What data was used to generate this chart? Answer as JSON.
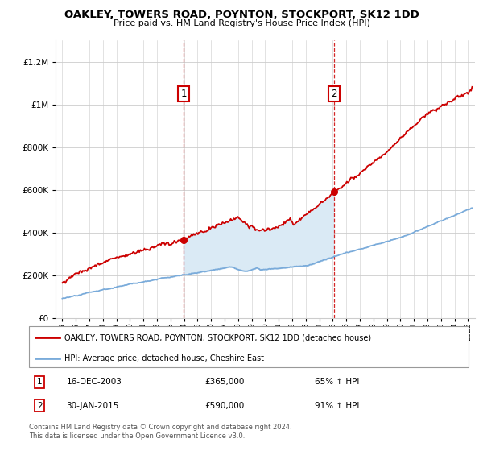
{
  "title": "OAKLEY, TOWERS ROAD, POYNTON, STOCKPORT, SK12 1DD",
  "subtitle": "Price paid vs. HM Land Registry's House Price Index (HPI)",
  "legend_label_red": "OAKLEY, TOWERS ROAD, POYNTON, STOCKPORT, SK12 1DD (detached house)",
  "legend_label_blue": "HPI: Average price, detached house, Cheshire East",
  "sale1_label": "16-DEC-2003",
  "sale1_price": "£365,000",
  "sale1_hpi": "65% ↑ HPI",
  "sale2_label": "30-JAN-2015",
  "sale2_price": "£590,000",
  "sale2_hpi": "91% ↑ HPI",
  "footer": "Contains HM Land Registry data © Crown copyright and database right 2024.\nThis data is licensed under the Open Government Licence v3.0.",
  "red_color": "#cc0000",
  "blue_color": "#7aabda",
  "fill_color": "#daeaf5",
  "sale1_date_num": 2003.96,
  "sale2_date_num": 2015.08,
  "ylim": [
    0,
    1300000
  ],
  "xlim": [
    1994.5,
    2025.5
  ]
}
